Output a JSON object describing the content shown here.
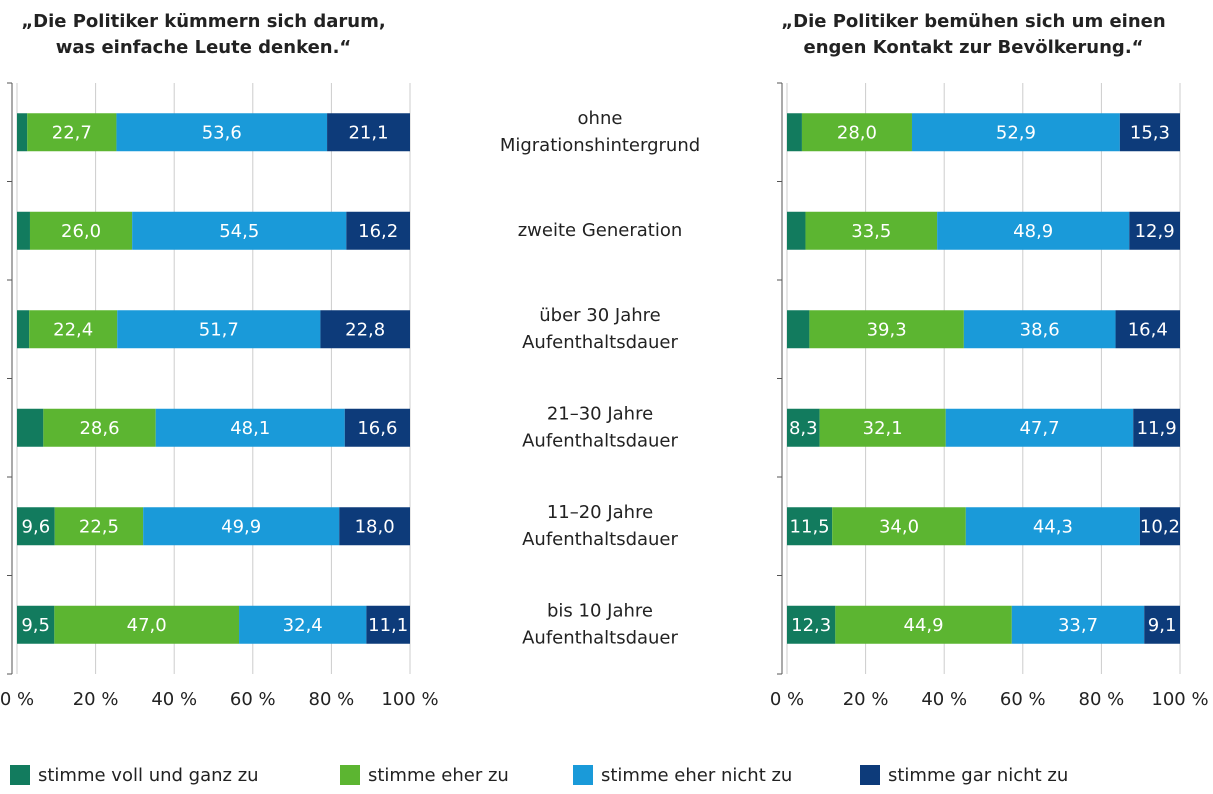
{
  "chart_data": {
    "type": "bar",
    "orientation": "horizontal",
    "stacked": true,
    "categories": [
      [
        "ohne",
        "Migrationshintergrund"
      ],
      [
        "zweite Generation"
      ],
      [
        "über 30 Jahre",
        "Aufenthaltsdauer"
      ],
      [
        "21–30 Jahre",
        "Aufenthaltsdauer"
      ],
      [
        "11–20 Jahre",
        "Aufenthaltsdauer"
      ],
      [
        "bis 10 Jahre",
        "Aufenthaltsdauer"
      ]
    ],
    "series": [
      {
        "name": "stimme voll und ganz zu",
        "color": "#127b5e"
      },
      {
        "name": "stimme eher zu",
        "color": "#5cb531"
      },
      {
        "name": "stimme eher nicht zu",
        "color": "#1a9ad9"
      },
      {
        "name": "stimme gar nicht zu",
        "color": "#0d3b7a"
      }
    ],
    "grid": true,
    "panels": [
      {
        "title": [
          "„Die Politiker kümmern sich darum,",
          "was einfache Leute denken.“"
        ],
        "xlim": [
          0,
          100
        ],
        "xticks": [
          {
            "value": 0,
            "label": "0 %"
          },
          {
            "value": 20,
            "label": "20 %"
          },
          {
            "value": 40,
            "label": "40 %"
          },
          {
            "value": 60,
            "label": "60 %"
          },
          {
            "value": 80,
            "label": "80 %"
          },
          {
            "value": 100,
            "label": "100 %"
          }
        ],
        "series": [
          {
            "values": [
              2.6,
              3.3,
              3.1,
              6.7,
              9.6,
              9.5
            ],
            "value_labels": [
              null,
              null,
              null,
              null,
              "9,6",
              "9,5"
            ]
          },
          {
            "values": [
              22.7,
              26.0,
              22.4,
              28.6,
              22.5,
              47.0
            ],
            "value_labels": [
              "22,7",
              "26,0",
              "22,4",
              "28,6",
              "22,5",
              "47,0"
            ]
          },
          {
            "values": [
              53.6,
              54.5,
              51.7,
              48.1,
              49.9,
              32.4
            ],
            "value_labels": [
              "53,6",
              "54,5",
              "51,7",
              "48,1",
              "49,9",
              "32,4"
            ]
          },
          {
            "values": [
              21.1,
              16.2,
              22.8,
              16.6,
              18.0,
              11.1
            ],
            "value_labels": [
              "21,1",
              "16,2",
              "22,8",
              "16,6",
              "18,0",
              "11,1"
            ]
          }
        ]
      },
      {
        "title": [
          "„Die Politiker bemühen sich um einen",
          "engen Kontakt zur Bevölkerung.“"
        ],
        "xlim": [
          0,
          100
        ],
        "xticks": [
          {
            "value": 0,
            "label": "0 %"
          },
          {
            "value": 20,
            "label": "20 %"
          },
          {
            "value": 40,
            "label": "40 %"
          },
          {
            "value": 60,
            "label": "60 %"
          },
          {
            "value": 80,
            "label": "80 %"
          },
          {
            "value": 100,
            "label": "100 %"
          }
        ],
        "series": [
          {
            "values": [
              3.8,
              4.7,
              5.7,
              8.3,
              11.5,
              12.3
            ],
            "value_labels": [
              null,
              null,
              null,
              "8,3",
              "11,5",
              "12,3"
            ]
          },
          {
            "values": [
              28.0,
              33.5,
              39.3,
              32.1,
              34.0,
              44.9
            ],
            "value_labels": [
              "28,0",
              "33,5",
              "39,3",
              "32,1",
              "34,0",
              "44,9"
            ]
          },
          {
            "values": [
              52.9,
              48.9,
              38.6,
              47.7,
              44.3,
              33.7
            ],
            "value_labels": [
              "52,9",
              "48,9",
              "38,6",
              "47,7",
              "44,3",
              "33,7"
            ]
          },
          {
            "values": [
              15.3,
              12.9,
              16.4,
              11.9,
              10.2,
              9.1
            ],
            "value_labels": [
              "15,3",
              "12,9",
              "16,4",
              "11,9",
              "10,2",
              "9,1"
            ]
          }
        ]
      }
    ]
  }
}
